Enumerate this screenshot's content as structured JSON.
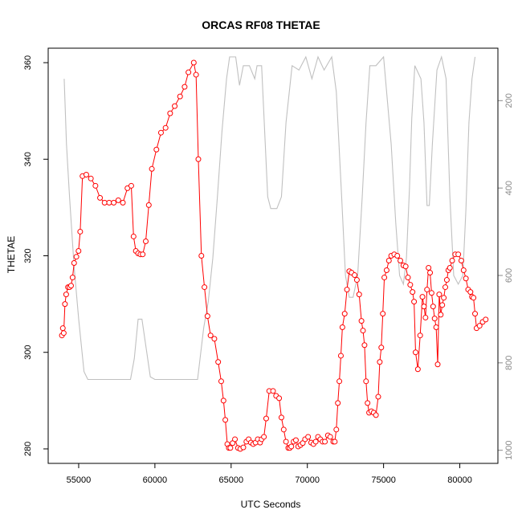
{
  "chart_data": {
    "type": "line",
    "title": "ORCAS RF08 THETAE",
    "xlabel": "UTC Seconds",
    "ylabel": "THETAE",
    "xlim": [
      53000,
      82500
    ],
    "ylim": [
      277,
      363
    ],
    "x_ticks": [
      55000,
      60000,
      65000,
      70000,
      75000,
      80000
    ],
    "y_ticks": [
      280,
      300,
      320,
      340,
      360
    ],
    "grid": false,
    "legend": "none",
    "series": [
      {
        "color": "#ff0000",
        "style": "line-with-open-circles",
        "points": [
          [
            53900,
            303.5
          ],
          [
            53960,
            305
          ],
          [
            54020,
            304
          ],
          [
            54100,
            310
          ],
          [
            54180,
            312
          ],
          [
            54300,
            313.5
          ],
          [
            54400,
            313.5
          ],
          [
            54500,
            313.8
          ],
          [
            54600,
            315.5
          ],
          [
            54700,
            318.5
          ],
          [
            54850,
            319.8
          ],
          [
            54990,
            321
          ],
          [
            55100,
            325
          ],
          [
            55250,
            336.5
          ],
          [
            55500,
            336.8
          ],
          [
            55800,
            336
          ],
          [
            56100,
            334.5
          ],
          [
            56400,
            332
          ],
          [
            56700,
            331
          ],
          [
            57000,
            331
          ],
          [
            57300,
            331
          ],
          [
            57600,
            331.5
          ],
          [
            57900,
            331
          ],
          [
            58200,
            334
          ],
          [
            58450,
            334.5
          ],
          [
            58600,
            324
          ],
          [
            58750,
            321
          ],
          [
            58900,
            320.5
          ],
          [
            59050,
            320.3
          ],
          [
            59200,
            320.3
          ],
          [
            59400,
            323
          ],
          [
            59600,
            330.5
          ],
          [
            59800,
            338
          ],
          [
            60100,
            342
          ],
          [
            60400,
            345.5
          ],
          [
            60700,
            346.5
          ],
          [
            61000,
            349.5
          ],
          [
            61300,
            351
          ],
          [
            61650,
            353
          ],
          [
            61950,
            355
          ],
          [
            62200,
            358
          ],
          [
            62550,
            360
          ],
          [
            62700,
            357.5
          ],
          [
            62850,
            340
          ],
          [
            63050,
            320
          ],
          [
            63250,
            313.5
          ],
          [
            63450,
            307.5
          ],
          [
            63650,
            303.5
          ],
          [
            63900,
            302.8
          ],
          [
            64150,
            298
          ],
          [
            64350,
            294
          ],
          [
            64500,
            290
          ],
          [
            64620,
            286
          ],
          [
            64750,
            281
          ],
          [
            64850,
            280.2
          ],
          [
            64950,
            280.2
          ],
          [
            65100,
            281.2
          ],
          [
            65250,
            282
          ],
          [
            65450,
            280.2
          ],
          [
            65600,
            280
          ],
          [
            65800,
            280.3
          ],
          [
            66000,
            281.5
          ],
          [
            66150,
            282
          ],
          [
            66300,
            281.3
          ],
          [
            66450,
            281
          ],
          [
            66600,
            281.3
          ],
          [
            66750,
            282
          ],
          [
            66900,
            281.3
          ],
          [
            67000,
            282
          ],
          [
            67150,
            282.5
          ],
          [
            67300,
            286.3
          ],
          [
            67500,
            292
          ],
          [
            67750,
            292
          ],
          [
            67950,
            291
          ],
          [
            68150,
            290.5
          ],
          [
            68300,
            286.5
          ],
          [
            68450,
            284
          ],
          [
            68600,
            281.5
          ],
          [
            68750,
            280.2
          ],
          [
            68850,
            280.2
          ],
          [
            68950,
            280.5
          ],
          [
            69100,
            281.5
          ],
          [
            69250,
            281.8
          ],
          [
            69400,
            280.5
          ],
          [
            69550,
            280.8
          ],
          [
            69700,
            281.2
          ],
          [
            69850,
            282
          ],
          [
            70050,
            282.5
          ],
          [
            70250,
            281.3
          ],
          [
            70400,
            281
          ],
          [
            70550,
            281.5
          ],
          [
            70700,
            282.5
          ],
          [
            70850,
            282
          ],
          [
            71000,
            281.5
          ],
          [
            71150,
            281.5
          ],
          [
            71350,
            282.8
          ],
          [
            71500,
            282.5
          ],
          [
            71700,
            281.5
          ],
          [
            71800,
            281.5
          ],
          [
            71900,
            284
          ],
          [
            72000,
            289.5
          ],
          [
            72100,
            294
          ],
          [
            72200,
            299.3
          ],
          [
            72300,
            305.2
          ],
          [
            72450,
            308
          ],
          [
            72600,
            313
          ],
          [
            72750,
            316.8
          ],
          [
            72900,
            316.5
          ],
          [
            73100,
            316
          ],
          [
            73250,
            315
          ],
          [
            73400,
            312
          ],
          [
            73550,
            306.5
          ],
          [
            73650,
            304.5
          ],
          [
            73750,
            301.5
          ],
          [
            73850,
            294
          ],
          [
            73950,
            289.5
          ],
          [
            74050,
            287.5
          ],
          [
            74200,
            287.8
          ],
          [
            74350,
            287.5
          ],
          [
            74500,
            287
          ],
          [
            74650,
            290.8
          ],
          [
            74750,
            298
          ],
          [
            74850,
            301
          ],
          [
            74950,
            308
          ],
          [
            75050,
            315.5
          ],
          [
            75200,
            317
          ],
          [
            75350,
            319
          ],
          [
            75500,
            320
          ],
          [
            75700,
            320.3
          ],
          [
            75900,
            320
          ],
          [
            76100,
            319
          ],
          [
            76300,
            318
          ],
          [
            76450,
            317.8
          ],
          [
            76600,
            315.5
          ],
          [
            76750,
            314
          ],
          [
            76900,
            312.5
          ],
          [
            77000,
            310.5
          ],
          [
            77100,
            300
          ],
          [
            77250,
            296.5
          ],
          [
            77400,
            303.5
          ],
          [
            77550,
            311.5
          ],
          [
            77650,
            309.5
          ],
          [
            77750,
            307.2
          ],
          [
            77850,
            313
          ],
          [
            77950,
            317.5
          ],
          [
            78050,
            316.5
          ],
          [
            78150,
            312.3
          ],
          [
            78250,
            309.5
          ],
          [
            78350,
            307
          ],
          [
            78450,
            305.2
          ],
          [
            78550,
            297.5
          ],
          [
            78650,
            312
          ],
          [
            78750,
            307.8
          ],
          [
            78850,
            309.8
          ],
          [
            78950,
            311.3
          ],
          [
            79050,
            313.5
          ],
          [
            79150,
            315
          ],
          [
            79250,
            317
          ],
          [
            79350,
            317.5
          ],
          [
            79500,
            319
          ],
          [
            79700,
            320.3
          ],
          [
            79900,
            320.3
          ],
          [
            80100,
            319
          ],
          [
            80250,
            317
          ],
          [
            80400,
            315.3
          ],
          [
            80550,
            313
          ],
          [
            80700,
            312.5
          ],
          [
            80800,
            311.5
          ],
          [
            80900,
            311.3
          ],
          [
            81000,
            308
          ],
          [
            81100,
            305
          ],
          [
            81300,
            305.5
          ],
          [
            81500,
            306.3
          ],
          [
            81700,
            306.8
          ]
        ]
      },
      {
        "color": "#c0c0c0",
        "style": "line",
        "axis": "right",
        "points": [
          [
            54050,
            150
          ],
          [
            54200,
            300
          ],
          [
            54400,
            420
          ],
          [
            54700,
            580
          ],
          [
            55000,
            700
          ],
          [
            55350,
            820
          ],
          [
            55600,
            838
          ],
          [
            56500,
            838
          ],
          [
            57500,
            838
          ],
          [
            58400,
            838
          ],
          [
            58650,
            790
          ],
          [
            58900,
            700
          ],
          [
            59150,
            700
          ],
          [
            59400,
            760
          ],
          [
            59700,
            832
          ],
          [
            60000,
            838
          ],
          [
            61000,
            838
          ],
          [
            62000,
            838
          ],
          [
            62800,
            838
          ],
          [
            63200,
            720
          ],
          [
            63500,
            660
          ],
          [
            63800,
            560
          ],
          [
            64100,
            420
          ],
          [
            64400,
            270
          ],
          [
            64700,
            150
          ],
          [
            64900,
            100
          ],
          [
            65300,
            100
          ],
          [
            65550,
            165
          ],
          [
            65800,
            120
          ],
          [
            66200,
            120
          ],
          [
            66550,
            150
          ],
          [
            66700,
            120
          ],
          [
            67000,
            120
          ],
          [
            67400,
            420
          ],
          [
            67600,
            447
          ],
          [
            68000,
            447
          ],
          [
            68300,
            420
          ],
          [
            68600,
            250
          ],
          [
            69000,
            120
          ],
          [
            69450,
            130
          ],
          [
            69900,
            100
          ],
          [
            70300,
            150
          ],
          [
            70700,
            100
          ],
          [
            71100,
            130
          ],
          [
            71600,
            100
          ],
          [
            71900,
            180
          ],
          [
            72250,
            420
          ],
          [
            72500,
            600
          ],
          [
            72750,
            650
          ],
          [
            73000,
            650
          ],
          [
            73300,
            600
          ],
          [
            73600,
            420
          ],
          [
            73850,
            250
          ],
          [
            74100,
            120
          ],
          [
            74500,
            120
          ],
          [
            75000,
            100
          ],
          [
            75500,
            300
          ],
          [
            75800,
            480
          ],
          [
            76050,
            600
          ],
          [
            76300,
            620
          ],
          [
            76500,
            560
          ],
          [
            76700,
            400
          ],
          [
            76850,
            240
          ],
          [
            77050,
            120
          ],
          [
            77450,
            150
          ],
          [
            77650,
            250
          ],
          [
            77850,
            440
          ],
          [
            78000,
            440
          ],
          [
            78200,
            300
          ],
          [
            78500,
            130
          ],
          [
            78800,
            100
          ],
          [
            79100,
            150
          ],
          [
            79350,
            420
          ],
          [
            79600,
            600
          ],
          [
            79900,
            620
          ],
          [
            80200,
            600
          ],
          [
            80400,
            450
          ],
          [
            80600,
            250
          ],
          [
            80800,
            150
          ],
          [
            81000,
            100
          ]
        ]
      }
    ],
    "right_axis": {
      "ticks": [
        200,
        400,
        600,
        800,
        1000
      ],
      "lim": [
        1030,
        80
      ],
      "color": "#8a8a8a"
    }
  }
}
